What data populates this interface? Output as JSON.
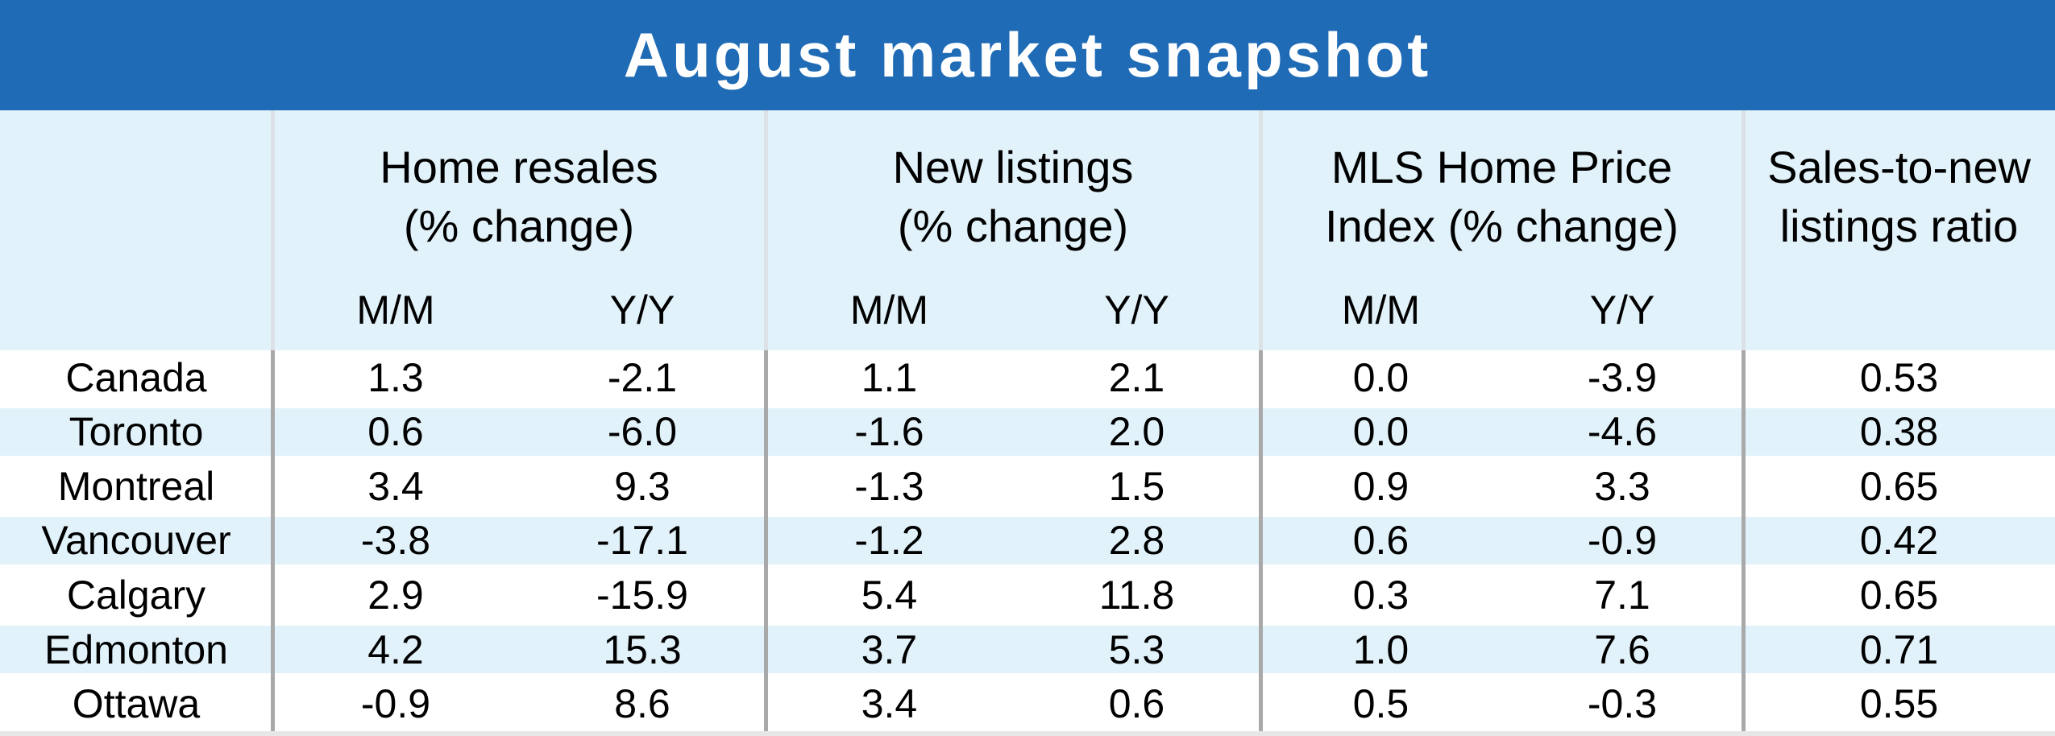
{
  "title": "August market snapshot",
  "colors": {
    "header_blue": "#1F6BB5",
    "band_light_blue": "#E2F2FA",
    "stripe_light_blue": "#E2F2FA",
    "divider_header": "#DCE1E6",
    "divider_body": "#A9A9A9",
    "bottom_strip": "#E7E7E7",
    "title_text": "#FFFFFF",
    "body_text": "#000000"
  },
  "table": {
    "groups": [
      {
        "line1": "Home resales",
        "line2": "(% change)",
        "sub_mm": "M/M",
        "sub_yy": "Y/Y"
      },
      {
        "line1": "New listings",
        "line2": "(% change)",
        "sub_mm": "M/M",
        "sub_yy": "Y/Y"
      },
      {
        "line1": "MLS Home Price",
        "line2": "Index (% change)",
        "sub_mm": "M/M",
        "sub_yy": "Y/Y"
      },
      {
        "line1": "Sales-to-new",
        "line2": "listings ratio"
      }
    ],
    "rows": [
      {
        "label": "Canada",
        "hr_mm": "1.3",
        "hr_yy": "-2.1",
        "nl_mm": "1.1",
        "nl_yy": "2.1",
        "mls_mm": "0.0",
        "mls_yy": "-3.9",
        "ratio": "0.53"
      },
      {
        "label": "Toronto",
        "hr_mm": "0.6",
        "hr_yy": "-6.0",
        "nl_mm": "-1.6",
        "nl_yy": "2.0",
        "mls_mm": "0.0",
        "mls_yy": "-4.6",
        "ratio": "0.38"
      },
      {
        "label": "Montreal",
        "hr_mm": "3.4",
        "hr_yy": "9.3",
        "nl_mm": "-1.3",
        "nl_yy": "1.5",
        "mls_mm": "0.9",
        "mls_yy": "3.3",
        "ratio": "0.65"
      },
      {
        "label": "Vancouver",
        "hr_mm": "-3.8",
        "hr_yy": "-17.1",
        "nl_mm": "-1.2",
        "nl_yy": "2.8",
        "mls_mm": "0.6",
        "mls_yy": "-0.9",
        "ratio": "0.42"
      },
      {
        "label": "Calgary",
        "hr_mm": "2.9",
        "hr_yy": "-15.9",
        "nl_mm": "5.4",
        "nl_yy": "11.8",
        "mls_mm": "0.3",
        "mls_yy": "7.1",
        "ratio": "0.65"
      },
      {
        "label": "Edmonton",
        "hr_mm": "4.2",
        "hr_yy": "15.3",
        "nl_mm": "3.7",
        "nl_yy": "5.3",
        "mls_mm": "1.0",
        "mls_yy": "7.6",
        "ratio": "0.71"
      },
      {
        "label": "Ottawa",
        "hr_mm": "-0.9",
        "hr_yy": "8.6",
        "nl_mm": "3.4",
        "nl_yy": "0.6",
        "mls_mm": "0.5",
        "mls_yy": "-0.3",
        "ratio": "0.55"
      }
    ]
  },
  "chart_data": {
    "type": "table",
    "title": "August market snapshot",
    "column_groups": [
      "Home resales (% change)",
      "New listings (% change)",
      "MLS Home Price Index (% change)",
      "Sales-to-new listings ratio"
    ],
    "columns": [
      "Home resales M/M",
      "Home resales Y/Y",
      "New listings M/M",
      "New listings Y/Y",
      "MLS Home Price Index M/M",
      "MLS Home Price Index Y/Y",
      "Sales-to-new listings ratio"
    ],
    "rows": [
      {
        "region": "Canada",
        "values": [
          1.3,
          -2.1,
          1.1,
          2.1,
          0.0,
          -3.9,
          0.53
        ]
      },
      {
        "region": "Toronto",
        "values": [
          0.6,
          -6.0,
          -1.6,
          2.0,
          0.0,
          -4.6,
          0.38
        ]
      },
      {
        "region": "Montreal",
        "values": [
          3.4,
          9.3,
          -1.3,
          1.5,
          0.9,
          3.3,
          0.65
        ]
      },
      {
        "region": "Vancouver",
        "values": [
          -3.8,
          -17.1,
          -1.2,
          2.8,
          0.6,
          -0.9,
          0.42
        ]
      },
      {
        "region": "Calgary",
        "values": [
          2.9,
          -15.9,
          5.4,
          11.8,
          0.3,
          7.1,
          0.65
        ]
      },
      {
        "region": "Edmonton",
        "values": [
          4.2,
          15.3,
          3.7,
          5.3,
          1.0,
          7.6,
          0.71
        ]
      },
      {
        "region": "Ottawa",
        "values": [
          -0.9,
          8.6,
          3.4,
          0.6,
          0.5,
          -0.3,
          0.55
        ]
      }
    ],
    "layout": {
      "striped_rows": [
        "Toronto",
        "Vancouver",
        "Edmonton"
      ],
      "grid": "vertical group dividers only"
    }
  }
}
